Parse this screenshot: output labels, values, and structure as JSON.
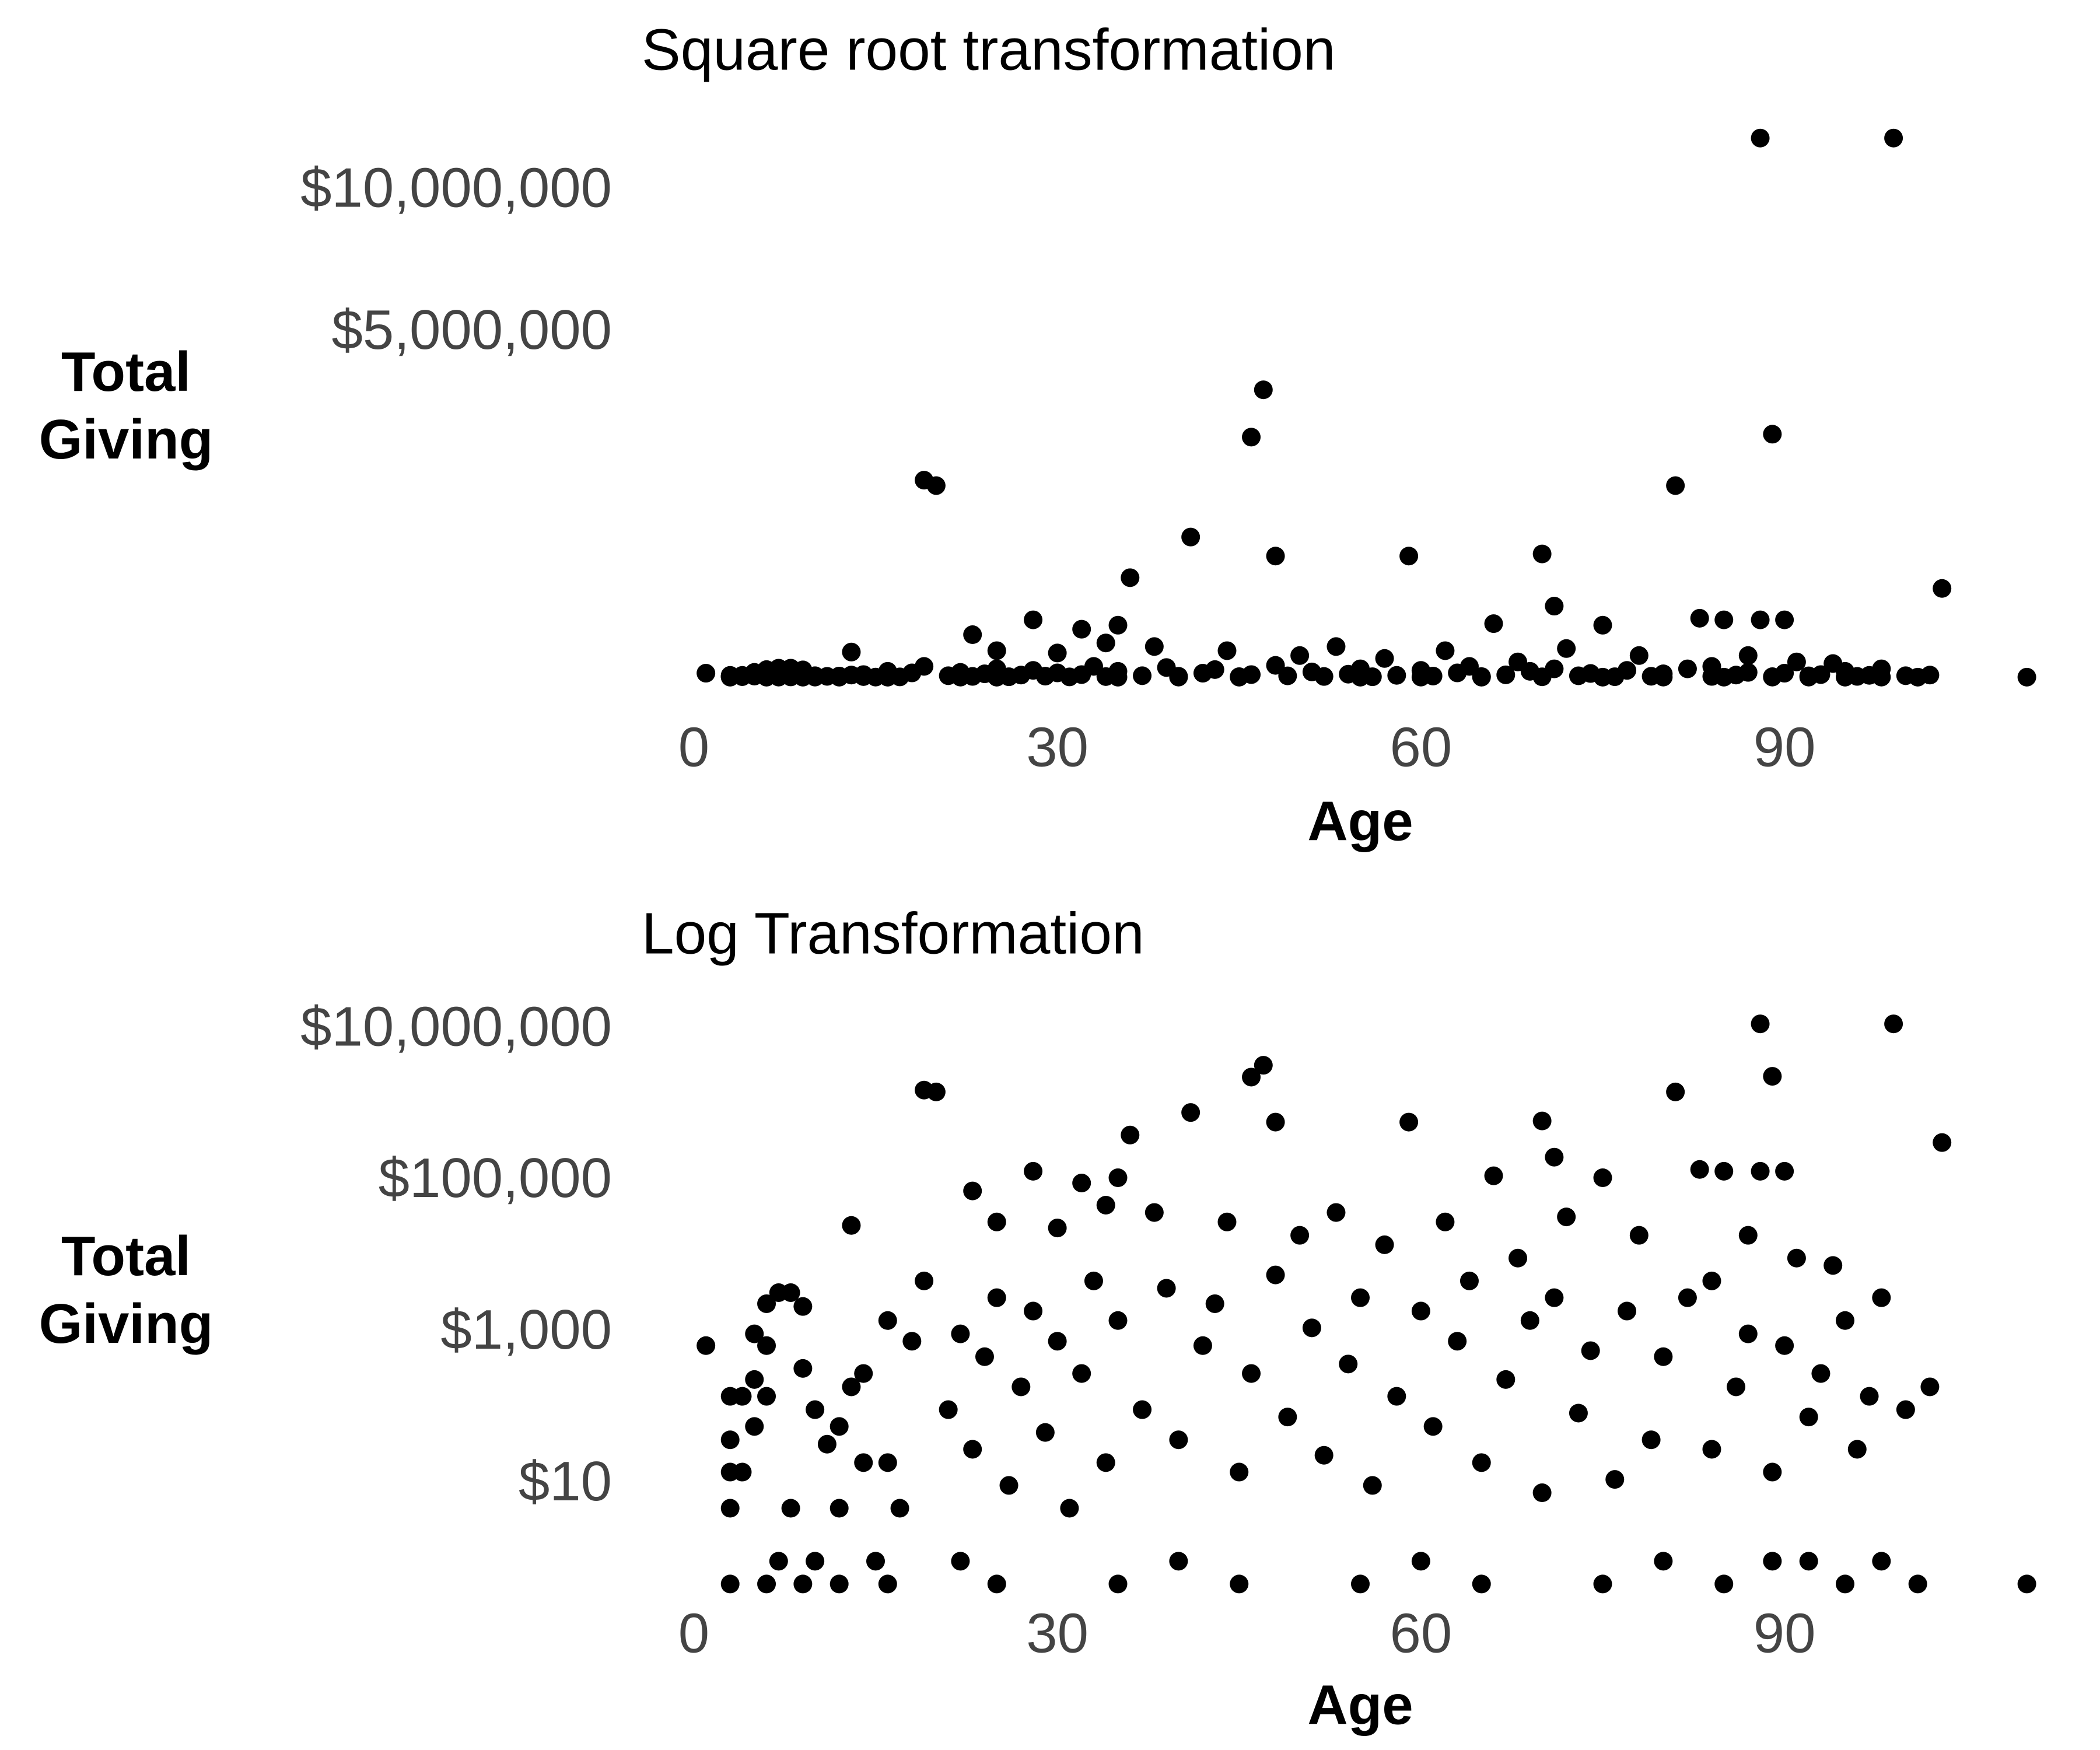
{
  "chart_data": [
    {
      "type": "scatter",
      "title": "Square root transformation",
      "x_label": "Age",
      "y_label": "Total Giving",
      "yscale": "sqrt",
      "color": "#000000",
      "xlim": [
        -0.5,
        110.5
      ],
      "ylim": [
        0,
        12800000
      ],
      "xticks": [
        0,
        30,
        60,
        90
      ],
      "yticks": [
        {
          "value": 5000000,
          "label": "$5,000,000"
        },
        {
          "value": 10000000,
          "label": "$10,000,000"
        }
      ],
      "x": [
        88,
        99,
        47,
        46,
        89,
        19,
        20,
        81,
        41,
        48,
        59,
        70,
        36,
        103,
        71,
        83,
        85,
        88,
        90,
        66,
        75,
        28,
        35,
        32,
        23,
        13,
        110,
        1,
        3,
        3,
        3,
        3,
        4,
        4,
        5,
        5,
        5,
        6,
        6,
        6,
        7,
        7,
        8,
        8,
        9,
        9,
        10,
        10,
        11,
        12,
        12,
        13,
        14,
        14,
        16,
        16,
        17,
        18,
        19,
        3,
        6,
        9,
        12,
        16,
        25,
        35,
        45,
        55,
        65,
        75,
        85,
        95,
        101,
        15,
        22,
        40,
        60,
        80,
        89,
        92,
        98,
        25,
        30,
        34,
        38,
        44,
        50,
        53,
        57,
        62,
        68,
        72,
        78,
        84,
        87,
        91,
        94,
        98,
        100,
        102,
        21,
        22,
        23,
        24,
        25,
        26,
        27,
        28,
        29,
        30,
        31,
        32,
        33,
        34,
        35,
        37,
        39,
        40,
        42,
        43,
        45,
        46,
        48,
        49,
        51,
        52,
        54,
        55,
        56,
        58,
        60,
        61,
        63,
        64,
        65,
        67,
        69,
        70,
        71,
        73,
        74,
        76,
        77,
        79,
        80,
        82,
        84,
        86,
        87,
        89,
        90,
        92,
        93,
        95,
        96,
        97
      ],
      "values": [
        12350000,
        12350000,
        3510000,
        2450000,
        2510000,
        1650000,
        1560000,
        1560000,
        835000,
        624000,
        624000,
        646000,
        421000,
        335000,
        215000,
        148000,
        140000,
        140000,
        140000,
        122000,
        115000,
        140000,
        115000,
        98000,
        77000,
        27000,
        0.5,
        700,
        150,
        40,
        15,
        5,
        150,
        15,
        1000,
        250,
        60,
        2500,
        700,
        150,
        3500,
        1,
        3500,
        5,
        2300,
        350,
        1,
        100,
        35,
        60,
        5,
        200,
        300,
        20,
        1500,
        20,
        5,
        800,
        5000,
        0.5,
        0.5,
        0.5,
        0.5,
        0.5,
        0.5,
        0.5,
        0.5,
        0.5,
        0.5,
        0.5,
        0.5,
        0.5,
        0.5,
        1,
        1,
        1,
        1,
        1,
        1,
        1,
        1,
        30000,
        25000,
        50000,
        40000,
        30000,
        20000,
        40000,
        15000,
        30000,
        10000,
        35000,
        20000,
        5000,
        20000,
        10000,
        8000,
        3000,
        100,
        200,
        100,
        1000,
        30,
        500,
        3000,
        10,
        200,
        2000,
        50,
        800,
        5,
        300,
        5000,
        20,
        1500,
        100,
        4000,
        40,
        700,
        2500,
        15,
        300,
        6000,
        80,
        1200,
        25,
        400,
        3000,
        10,
        150,
        2000,
        60,
        800,
        5000,
        20,
        250,
        1500,
        8,
        3000,
        90,
        600,
        12,
        2000,
        40,
        500,
        3000,
        30,
        200,
        1000,
        15,
        700,
        80,
        300,
        1500,
        30,
        150
      ]
    },
    {
      "type": "scatter",
      "title": "Log Transformation",
      "x_label": "Age",
      "y_label": "Total Giving",
      "yscale": "log",
      "color": "#000000",
      "xlim": [
        -0.5,
        110.5
      ],
      "ylim": [
        0.4,
        20000000
      ],
      "xticks": [
        0,
        30,
        60,
        90
      ],
      "yticks": [
        {
          "value": 10,
          "label": "$10"
        },
        {
          "value": 1000,
          "label": "$1,000"
        },
        {
          "value": 100000,
          "label": "$100,000"
        },
        {
          "value": 10000000,
          "label": "$10,000,000"
        }
      ],
      "x": [
        88,
        99,
        47,
        46,
        89,
        19,
        20,
        81,
        41,
        48,
        59,
        70,
        36,
        103,
        71,
        83,
        85,
        88,
        90,
        66,
        75,
        28,
        35,
        32,
        23,
        13,
        110,
        1,
        3,
        3,
        3,
        3,
        4,
        4,
        5,
        5,
        5,
        6,
        6,
        6,
        7,
        7,
        8,
        8,
        9,
        9,
        10,
        10,
        11,
        12,
        12,
        13,
        14,
        14,
        16,
        16,
        17,
        18,
        19,
        3,
        6,
        9,
        12,
        16,
        25,
        35,
        45,
        55,
        65,
        75,
        85,
        95,
        101,
        15,
        22,
        40,
        60,
        80,
        89,
        92,
        98,
        25,
        30,
        34,
        38,
        44,
        50,
        53,
        57,
        62,
        68,
        72,
        78,
        84,
        87,
        91,
        94,
        98,
        100,
        102,
        21,
        22,
        23,
        24,
        25,
        26,
        27,
        28,
        29,
        30,
        31,
        32,
        33,
        34,
        35,
        37,
        39,
        40,
        42,
        43,
        45,
        46,
        48,
        49,
        51,
        52,
        54,
        55,
        56,
        58,
        60,
        61,
        63,
        64,
        65,
        67,
        69,
        70,
        71,
        73,
        74,
        76,
        77,
        79,
        80,
        82,
        84,
        86,
        87,
        89,
        90,
        92,
        93,
        95,
        96,
        97
      ],
      "values": [
        12350000,
        12350000,
        3510000,
        2450000,
        2510000,
        1650000,
        1560000,
        1560000,
        835000,
        624000,
        624000,
        646000,
        421000,
        335000,
        215000,
        148000,
        140000,
        140000,
        140000,
        122000,
        115000,
        140000,
        115000,
        98000,
        77000,
        27000,
        0.5,
        700,
        150,
        40,
        15,
        5,
        150,
        15,
        1000,
        250,
        60,
        2500,
        700,
        150,
        3500,
        1,
        3500,
        5,
        2300,
        350,
        1,
        100,
        35,
        60,
        5,
        200,
        300,
        20,
        1500,
        20,
        5,
        800,
        5000,
        0.5,
        0.5,
        0.5,
        0.5,
        0.5,
        0.5,
        0.5,
        0.5,
        0.5,
        0.5,
        0.5,
        0.5,
        0.5,
        0.5,
        1,
        1,
        1,
        1,
        1,
        1,
        1,
        1,
        30000,
        25000,
        50000,
        40000,
        30000,
        20000,
        40000,
        15000,
        30000,
        10000,
        35000,
        20000,
        5000,
        20000,
        10000,
        8000,
        3000,
        100,
        200,
        100,
        1000,
        30,
        500,
        3000,
        10,
        200,
        2000,
        50,
        800,
        5,
        300,
        5000,
        20,
        1500,
        100,
        4000,
        40,
        700,
        2500,
        15,
        300,
        6000,
        80,
        1200,
        25,
        400,
        3000,
        10,
        150,
        2000,
        60,
        800,
        5000,
        20,
        250,
        1500,
        8,
        3000,
        90,
        600,
        12,
        2000,
        40,
        500,
        3000,
        30,
        200,
        1000,
        15,
        700,
        80,
        300,
        1500,
        30,
        150
      ]
    }
  ]
}
